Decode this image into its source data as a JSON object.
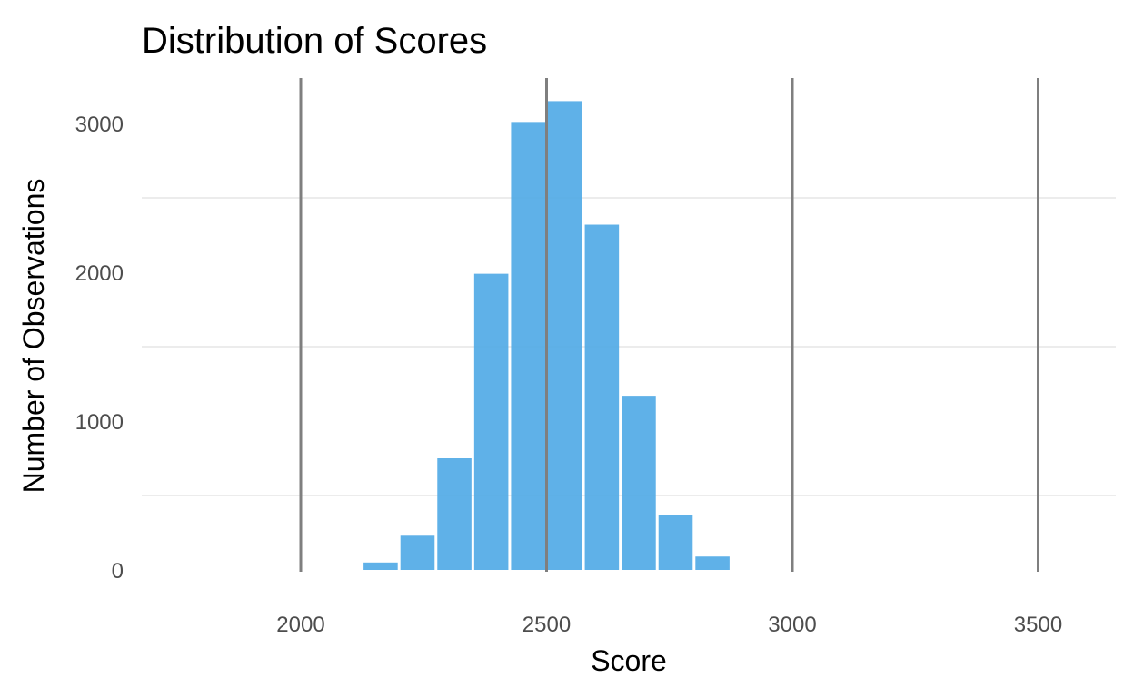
{
  "chart_data": {
    "type": "bar",
    "title": "Distribution of Scores",
    "xlabel": "Score",
    "ylabel": "Number of Observations",
    "x_bin_starts": [
      2125,
      2200,
      2275,
      2350,
      2425,
      2500,
      2575,
      2650,
      2725,
      2800
    ],
    "bin_width": 75,
    "values": [
      50,
      230,
      750,
      1990,
      3010,
      3150,
      2320,
      1170,
      370,
      90
    ],
    "xlim": [
      1675,
      3675
    ],
    "ylim": [
      0,
      3300
    ],
    "x_ticks": [
      2000,
      2500,
      3000,
      3500
    ],
    "x_tick_labels": [
      "2000",
      "2500",
      "3000",
      "3500"
    ],
    "y_ticks": [
      0,
      1000,
      2000,
      3000
    ],
    "y_tick_labels": [
      "0",
      "1000",
      "2000",
      "3000"
    ],
    "y_minor_gridlines": [
      500,
      1500,
      2500
    ],
    "vertical_reference_lines": [
      2000,
      2500,
      3000,
      3500
    ],
    "grid": "horizontal minor only",
    "bar_color": "#4ea8e5",
    "reference_line_color": "#7f7f7f",
    "grid_color": "#e6e6e6"
  }
}
